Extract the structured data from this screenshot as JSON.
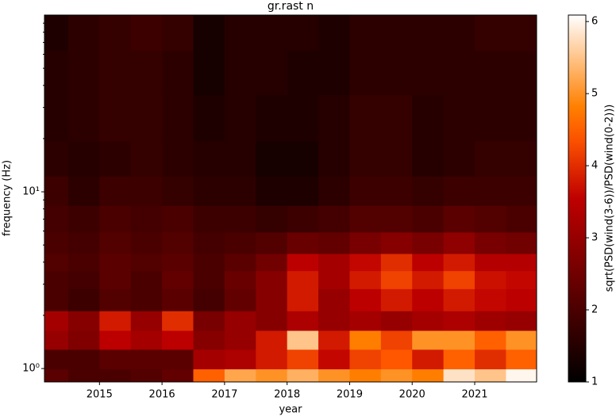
{
  "chart_data": {
    "type": "heatmap",
    "title": "gr.rast n",
    "xlabel": "year",
    "ylabel": "frequency (Hz)",
    "colorbar_label": "sqrt(PSD(wind(3-6))/PSD(wind(0-2)))",
    "colormap": "gist_heat",
    "log_y": true,
    "x": [
      2014.25,
      2014.75,
      2015.25,
      2015.75,
      2016.25,
      2016.75,
      2017.25,
      2017.75,
      2018.25,
      2018.75,
      2019.25,
      2019.75,
      2020.25,
      2020.75,
      2021.25,
      2021.75
    ],
    "y": [
      0.9,
      1.1,
      1.5,
      1.8,
      2.5,
      3.2,
      4,
      5,
      7,
      10,
      15,
      25,
      50,
      80
    ],
    "z": [
      [
        2.2,
        2.0,
        2.0,
        2.1,
        2.3,
        4.5,
        5.2,
        5.0,
        5.3,
        5.0,
        4.8,
        5.0,
        4.8,
        5.8,
        5.5,
        6.0
      ],
      [
        2.0,
        2.0,
        2.2,
        2.2,
        2.2,
        3.2,
        3.3,
        3.8,
        4.2,
        3.6,
        4.2,
        4.4,
        3.8,
        4.5,
        4.0,
        4.5
      ],
      [
        3.0,
        2.7,
        3.5,
        3.2,
        3.5,
        2.8,
        3.0,
        3.8,
        5.5,
        3.8,
        4.8,
        4.2,
        5.0,
        5.0,
        4.5,
        5.0
      ],
      [
        3.2,
        2.8,
        3.8,
        3.0,
        4.0,
        2.6,
        3.0,
        2.8,
        3.3,
        3.0,
        3.2,
        3.0,
        3.2,
        3.3,
        3.1,
        3.0
      ],
      [
        2.0,
        1.8,
        2.1,
        2.0,
        2.2,
        1.9,
        2.3,
        2.8,
        3.8,
        3.0,
        3.5,
        3.8,
        3.5,
        3.8,
        3.6,
        3.5
      ],
      [
        2.0,
        1.9,
        2.2,
        2.0,
        2.3,
        2.0,
        2.4,
        2.8,
        3.8,
        3.2,
        3.8,
        4.2,
        3.8,
        4.2,
        3.7,
        3.6
      ],
      [
        2.1,
        2.0,
        2.2,
        2.1,
        2.2,
        2.0,
        2.2,
        2.5,
        3.5,
        3.2,
        3.6,
        4.0,
        3.5,
        3.8,
        3.4,
        3.4
      ],
      [
        2.0,
        1.9,
        2.1,
        2.0,
        2.1,
        1.9,
        2.0,
        2.1,
        2.4,
        2.3,
        2.6,
        2.8,
        2.6,
        2.9,
        2.6,
        2.5
      ],
      [
        1.9,
        1.8,
        2.0,
        1.9,
        2.0,
        1.8,
        1.8,
        1.7,
        1.8,
        1.9,
        2.1,
        2.1,
        2.0,
        2.2,
        2.1,
        2.0
      ],
      [
        1.8,
        1.6,
        1.8,
        1.8,
        1.7,
        1.6,
        1.6,
        1.4,
        1.4,
        1.6,
        1.8,
        1.8,
        1.7,
        1.8,
        1.8,
        1.8
      ],
      [
        1.6,
        1.5,
        1.6,
        1.7,
        1.6,
        1.5,
        1.5,
        1.3,
        1.3,
        1.5,
        1.7,
        1.7,
        1.5,
        1.6,
        1.7,
        1.7
      ],
      [
        1.5,
        1.6,
        1.7,
        1.7,
        1.6,
        1.4,
        1.5,
        1.4,
        1.4,
        1.5,
        1.7,
        1.7,
        1.5,
        1.6,
        1.6,
        1.6
      ],
      [
        1.5,
        1.6,
        1.7,
        1.7,
        1.6,
        1.3,
        1.5,
        1.5,
        1.4,
        1.4,
        1.6,
        1.6,
        1.6,
        1.6,
        1.6,
        1.6
      ],
      [
        1.4,
        1.6,
        1.7,
        1.8,
        1.7,
        1.3,
        1.5,
        1.5,
        1.5,
        1.4,
        1.6,
        1.6,
        1.6,
        1.6,
        1.7,
        1.7
      ]
    ],
    "xlim": [
      2014.12,
      2021.99
    ],
    "xticks": [
      2015,
      2016,
      2017,
      2018,
      2019,
      2020,
      2021
    ],
    "ylim": [
      0.84,
      100
    ],
    "yticks": [
      {
        "value": 1,
        "label": "10⁰"
      },
      {
        "value": 10,
        "label": "10¹"
      }
    ],
    "yminorticks": [
      2,
      3,
      4,
      5,
      6,
      7,
      8,
      9,
      20,
      30,
      40,
      50,
      60,
      70,
      80,
      90
    ],
    "clim": [
      1,
      6.09
    ],
    "cticks": [
      1,
      2,
      3,
      4,
      5,
      6
    ]
  }
}
